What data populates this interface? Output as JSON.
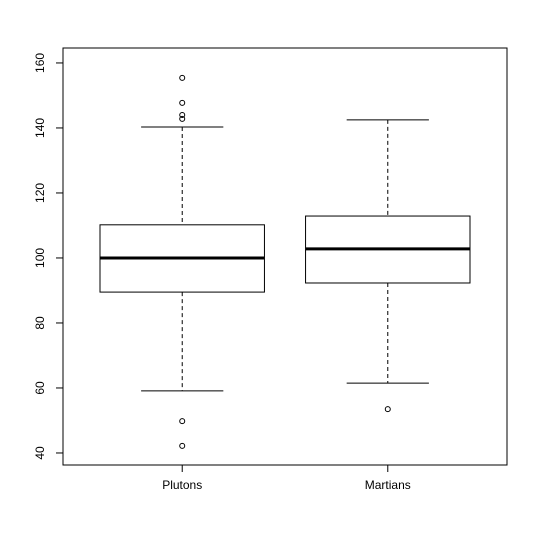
{
  "chart_data": {
    "type": "box",
    "categories": [
      "Plutons",
      "Martians"
    ],
    "boxes": [
      {
        "whislo": 59.1,
        "q1": 89.5,
        "median": 100,
        "q3": 110.2,
        "whishi": 140.3,
        "outliers": [
          155.4,
          147.7,
          144,
          142.8,
          49.8,
          42.2
        ]
      },
      {
        "whislo": 61.5,
        "q1": 92.3,
        "median": 102.8,
        "q3": 112.9,
        "whishi": 142.5,
        "outliers": [
          53.5
        ]
      }
    ],
    "color": "#000000",
    "ylim": [
      36.3,
      164.6
    ],
    "yticks": [
      40,
      60,
      80,
      100,
      120,
      140,
      160
    ]
  }
}
